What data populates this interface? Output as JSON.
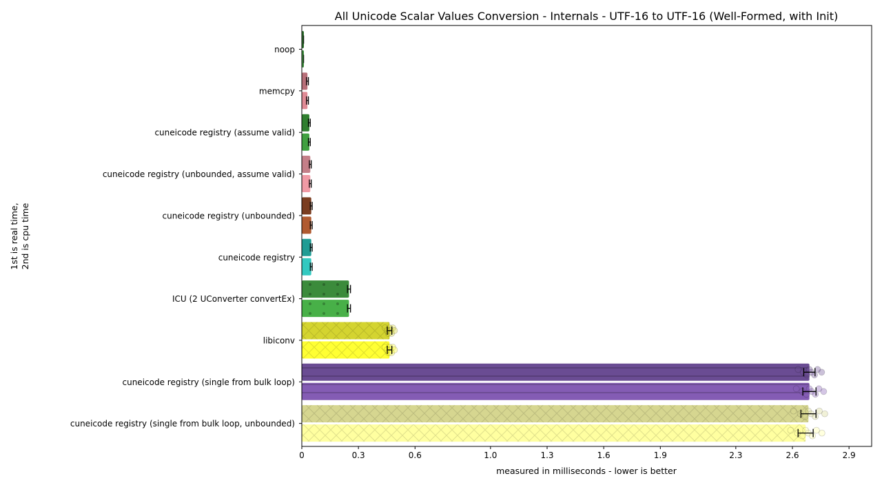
{
  "chart_data": {
    "type": "bar",
    "orientation": "horizontal",
    "title": "All Unicode Scalar Values Conversion - Internals - UTF-16 to UTF-16 (Well-Formed, with Init)",
    "xlabel": "measured in milliseconds - lower is better",
    "ylabel_lines": [
      "1st is real time,",
      "2nd is cpu time"
    ],
    "xlim": [
      0,
      3.02
    ],
    "xticks": [
      0,
      0.3,
      0.6,
      1.0,
      1.3,
      1.6,
      1.9,
      2.3,
      2.6,
      2.9
    ],
    "xtick_labels": [
      "0",
      "0.3",
      "0.6",
      "1.0",
      "1.3",
      "1.6",
      "1.9",
      "2.3",
      "2.6",
      "2.9"
    ],
    "grid": false,
    "categories": [
      "noop",
      "memcpy",
      "cuneicode registry (assume valid)",
      "cuneicode registry (unbounded, assume valid)",
      "cuneicode registry (unbounded)",
      "cuneicode registry",
      "ICU (2 UConverter convertEx)",
      "libiconv",
      "cuneicode registry (single from bulk loop)",
      "cuneicode registry (single from bulk loop, unbounded)"
    ],
    "series": [
      {
        "values": [
          0.01,
          0.03,
          0.04,
          0.045,
          0.05,
          0.05,
          0.25,
          0.465,
          2.69,
          2.685
        ],
        "error": [
          0.0,
          0.005,
          0.005,
          0.005,
          0.005,
          0.005,
          0.008,
          0.012,
          0.03,
          0.04
        ]
      },
      {
        "values": [
          0.01,
          0.03,
          0.04,
          0.045,
          0.05,
          0.05,
          0.25,
          0.465,
          2.69,
          2.67
        ],
        "error": [
          0.0,
          0.005,
          0.005,
          0.005,
          0.005,
          0.005,
          0.008,
          0.012,
          0.035,
          0.04
        ]
      }
    ],
    "colors": [
      [
        "#2d6e2d",
        "#3d8b3d"
      ],
      [
        "#b86f79",
        "#e08a95"
      ],
      [
        "#2f7f2f",
        "#40a040"
      ],
      [
        "#c47f88",
        "#f09aa5"
      ],
      [
        "#7a3d20",
        "#b05a30"
      ],
      [
        "#1f9c94",
        "#33c9c0"
      ],
      [
        "#3b8b3b",
        "#48b048"
      ],
      [
        "#d4d430",
        "#ffff33"
      ],
      [
        "#6a4c93",
        "#845cb4"
      ],
      [
        "#d6d690",
        "#ffffa0"
      ]
    ]
  }
}
